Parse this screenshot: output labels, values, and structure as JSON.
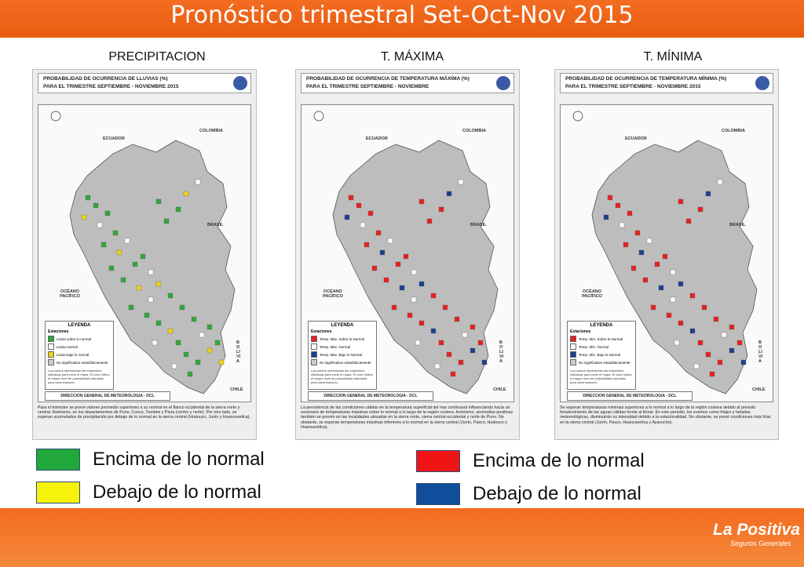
{
  "slide": {
    "title": "Pronóstico trimestral Set-Oct-Nov 2015"
  },
  "columns": [
    {
      "label": "PRECIPITACION",
      "map_title_1": "PROBABILIDAD DE OCURRENCIA DE LLUVIAS (%)",
      "map_title_2": "PARA EL TRIMESTRE SEPTIEMBRE - NOVIEMBRE 2015",
      "legend_title": "LEYENDA",
      "legend_subtitle": "Estaciones",
      "legend_items": [
        "Lluvia sobre lo normal",
        "Lluvia normal",
        "Lluvia bajo lo normal",
        "No significativo estadísticamente"
      ],
      "legend_colors": [
        "#2ea83a",
        "#ffffff",
        "#f0d21a",
        "#cccccc"
      ],
      "legend_note": "Los puntos representan las estaciones utilizadas para crear el mapa. El color indica el mayor nivel de probabilidad calculado para cada estación.",
      "footer_1": "DIRECCION GENERAL DE METEOROLOGIA - DCL",
      "footer_2": "PROBABILIDAD DE OCURRENCIA DE LLUVIAS",
      "description": "Para el trimestre se prevé valores promedio superiores a su normal en el flanco occidental de la sierra norte y central. Asimismo, en los departamentos de Puno, Cusco, Tumbes y Piura (centro y norte). Por otro lado, se esperan acumulados de precipitación por debajo de lo normal en la sierra central (Huánuco, Junín y Huancavelica)."
    },
    {
      "label": "T. MÁXIMA",
      "map_title_1": "PROBABILIDAD DE OCURRENCIA DE TEMPERATURA MÁXIMA (%)",
      "map_title_2": "PARA EL TRIMESTRE SEPTIEMBRE - NOVIEMBRE",
      "legend_title": "LEYENDA",
      "legend_subtitle": "Estaciones",
      "legend_items": [
        "Temp. Máx. Sobre lo Normal",
        "Temp. Máx. Normal",
        "Temp. Máx. Bajo lo Normal",
        "No significativo estadísticamente"
      ],
      "legend_colors": [
        "#e8201e",
        "#ffffff",
        "#1a3f8f",
        "#cccccc"
      ],
      "legend_note": "Los puntos representan las estaciones utilizadas para crear el mapa. El color indica el mayor nivel de probabilidad calculado para cada estación.",
      "footer_1": "DIRECCION GENERAL DE METEOROLOGIA - DCL",
      "footer_2": "PROBABILIDAD DE OCURRENCIA DE TEMPERATURA MÁXIMA",
      "description": "La persistencia de las condiciones cálidas en la temperatura superficial del mar continuará influenciando hacia un escenario de temperaturas máximas sobre lo normal a lo largo de la región costera. Asimismo, anomalías positivas también se prevén en las localidades ubicadas en la sierra norte, sierra central-occidental y norte de Puno. No obstante, se esperan temperaturas máximas inferiores a lo normal en la sierra central (Junín, Pasco, Huánuco y Huancavelica)."
    },
    {
      "label": "T. MÍNIMA",
      "map_title_1": "PROBABILIDAD DE OCURRENCIA DE TEMPERATURA MÍNIMA (%)",
      "map_title_2": "PARA EL TRIMESTRE SEPTIEMBRE - NOVIEMBRE 2015",
      "legend_title": "LEYENDA",
      "legend_subtitle": "Estaciones",
      "legend_items": [
        "Temp. Mín. Sobre lo Normal",
        "Temp. Mín. Normal",
        "Temp. Mín. Bajo lo Normal",
        "No significativo estadísticamente"
      ],
      "legend_colors": [
        "#e8201e",
        "#ffffff",
        "#1a3f8f",
        "#cccccc"
      ],
      "legend_note": "Los puntos representan las estaciones utilizadas para crear el mapa. El color indica el mayor nivel de probabilidad calculado para cada estación.",
      "footer_1": "DIRECCION GENERAL DE METEOROLOGIA - DCL",
      "footer_2": "PROBABILIDAD DE OCURRENCIA DE TEMPERATURA MÍNIMA",
      "description": "Se esperan temperaturas mínimas superiores a lo normal a lo largo de la región costera debido al previsto fortalecimiento de las aguas cálidas frente al litoral. En este periodo, los eventos como friajes y heladas meteorológicas, disminuirán su intensidad debido a la estacionalidad. No obstante, se prevé condiciones más frías en la sierra central (Junín, Pasco, Huancavelica y Ayacucho)."
    }
  ],
  "map_labels": {
    "ecuador": "ECUADOR",
    "colombia": "COLOMBIA",
    "brasil": "BRASIL",
    "chile": "CHILE",
    "bolivia": "BOLIVIA",
    "oceano": "OCÉANO PACÍFICO"
  },
  "legend": {
    "precip_above": "Encima de lo normal",
    "precip_below": "Debajo de lo normal",
    "temp_above": "Encima de lo normal",
    "temp_below": "Debajo de lo normal",
    "colors": {
      "green": "#22a83a",
      "yellow": "#f7f20a",
      "red": "#ef1515",
      "blue": "#104e9c"
    }
  },
  "brand": {
    "name": "La Positiva",
    "tagline": "Seguros Generales",
    "accent": "#f36c21"
  }
}
